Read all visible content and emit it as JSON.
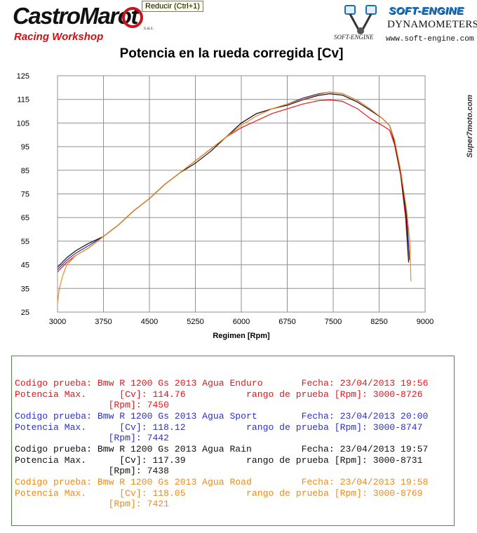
{
  "header": {
    "logo_left_main": "CastroMarot",
    "logo_left_sub": "Racing Workshop",
    "logo_left_suffix": "s.a.c.",
    "tooltip": "Reducir (Ctrl+1)",
    "logo_right_brand": "SOFT-ENGINE",
    "logo_right_dyn": "DYNAMOMETERS",
    "logo_right_small": "SOFT-ENGINE",
    "logo_right_web": "www.soft-engine.com"
  },
  "watermark": "Super7moto.com",
  "colors": {
    "enduro": "#e8161b",
    "sport": "#2b32c8",
    "rain": "#111111",
    "road": "#f08a1c",
    "grid": "#909090",
    "box_border": "#4b8c3f"
  },
  "chart_data": {
    "type": "line",
    "title": "Potencia en la rueda corregida [Cv]",
    "xlabel": "Regimen [Rpm]",
    "ylabel": "",
    "xlim": [
      3000,
      9000
    ],
    "ylim": [
      25,
      125
    ],
    "x_ticks": [
      3000,
      3750,
      4500,
      5250,
      6000,
      6750,
      7500,
      8250,
      9000
    ],
    "y_ticks": [
      25,
      35,
      45,
      55,
      65,
      75,
      85,
      95,
      105,
      115,
      125
    ],
    "grid": true,
    "series": [
      {
        "name": "Bmw R 1200 Gs 2013 Agua Enduro",
        "color": "#e8161b",
        "x": [
          3000,
          3150,
          3300,
          3500,
          3750,
          4000,
          4250,
          4500,
          4750,
          5000,
          5250,
          5500,
          5750,
          6000,
          6250,
          6500,
          6750,
          7000,
          7250,
          7450,
          7650,
          7900,
          8100,
          8300,
          8420,
          8500,
          8600,
          8680,
          8726
        ],
        "y": [
          42,
          46,
          49,
          52,
          57,
          62,
          68,
          73,
          79,
          84,
          89,
          94,
          99,
          103,
          106,
          109,
          111,
          113,
          114.4,
          114.76,
          114.2,
          111,
          107,
          104,
          102,
          96,
          83,
          65,
          48
        ]
      },
      {
        "name": "Bmw R 1200 Gs 2013 Agua Sport",
        "color": "#2b32c8",
        "x": [
          3000,
          3150,
          3300,
          3500,
          3750,
          4000,
          4250,
          4500,
          4750,
          5000,
          5250,
          5500,
          5750,
          6000,
          6250,
          6500,
          6750,
          7000,
          7250,
          7442,
          7650,
          7900,
          8100,
          8300,
          8420,
          8500,
          8600,
          8700,
          8747
        ],
        "y": [
          43,
          47,
          50,
          53,
          57,
          62,
          68,
          73,
          79,
          84,
          89,
          94,
          99,
          105,
          109,
          111,
          113,
          115.5,
          117.3,
          118.12,
          117.5,
          114.5,
          111,
          107,
          104,
          98,
          85,
          67,
          47
        ]
      },
      {
        "name": "Bmw R 1200 Gs 2013 Agua Rain",
        "color": "#111111",
        "x": [
          3000,
          3150,
          3300,
          3500,
          3750,
          4000,
          4250,
          4500,
          4750,
          5000,
          5250,
          5500,
          5750,
          6000,
          6250,
          6500,
          6750,
          7000,
          7250,
          7438,
          7650,
          7900,
          8100,
          8300,
          8420,
          8500,
          8600,
          8690,
          8731
        ],
        "y": [
          44,
          48,
          51,
          54,
          57,
          62,
          68,
          73,
          79,
          84,
          88,
          93,
          99,
          105,
          109,
          111,
          112.5,
          114.8,
          116.6,
          117.39,
          116.8,
          113.8,
          110.5,
          107,
          104,
          97,
          84,
          66,
          46
        ]
      },
      {
        "name": "Bmw R 1200 Gs 2013 Agua Road",
        "color": "#f08a1c",
        "x": [
          3000,
          3030,
          3080,
          3150,
          3300,
          3500,
          3750,
          4000,
          4250,
          4500,
          4750,
          5000,
          5250,
          5500,
          5750,
          6000,
          6250,
          6500,
          6750,
          7000,
          7250,
          7421,
          7650,
          7900,
          8100,
          8300,
          8420,
          8500,
          8600,
          8700,
          8750,
          8769
        ],
        "y": [
          29,
          35,
          40,
          45,
          49,
          52,
          57,
          62,
          68,
          73,
          79,
          84,
          89,
          94,
          99,
          104,
          108,
          111,
          113,
          115,
          117,
          118.05,
          117.5,
          114.5,
          111,
          107,
          104,
          98,
          85,
          68,
          55,
          38
        ]
      }
    ]
  },
  "info": {
    "records": [
      {
        "line1": "Codigo prueba: Bmw R 1200 Gs 2013 Agua Enduro       Fecha: 23/04/2013 19:56",
        "line2": "Potencia Max.      [Cv]: 114.76           rango de prueba [Rpm]: 3000-8726",
        "line3": "                 [Rpm]: 7450"
      },
      {
        "line1": "Codigo prueba: Bmw R 1200 Gs 2013 Agua Sport        Fecha: 23/04/2013 20:00",
        "line2": "Potencia Max.      [Cv]: 118.12           rango de prueba [Rpm]: 3000-8747",
        "line3": "                 [Rpm]: 7442"
      },
      {
        "line1": "Codigo prueba: Bmw R 1200 Gs 2013 Agua Rain         Fecha: 23/04/2013 19:57",
        "line2": "Potencia Max.      [Cv]: 117.39           rango de prueba [Rpm]: 3000-8731",
        "line3": "                 [Rpm]: 7438"
      },
      {
        "line1": "Codigo prueba: Bmw R 1200 Gs 2013 Agua Road         Fecha: 23/04/2013 19:58",
        "line2": "Potencia Max.      [Cv]: 118.05           rango de prueba [Rpm]: 3000-8769",
        "line3": "                 [Rpm]: 7421"
      }
    ]
  }
}
